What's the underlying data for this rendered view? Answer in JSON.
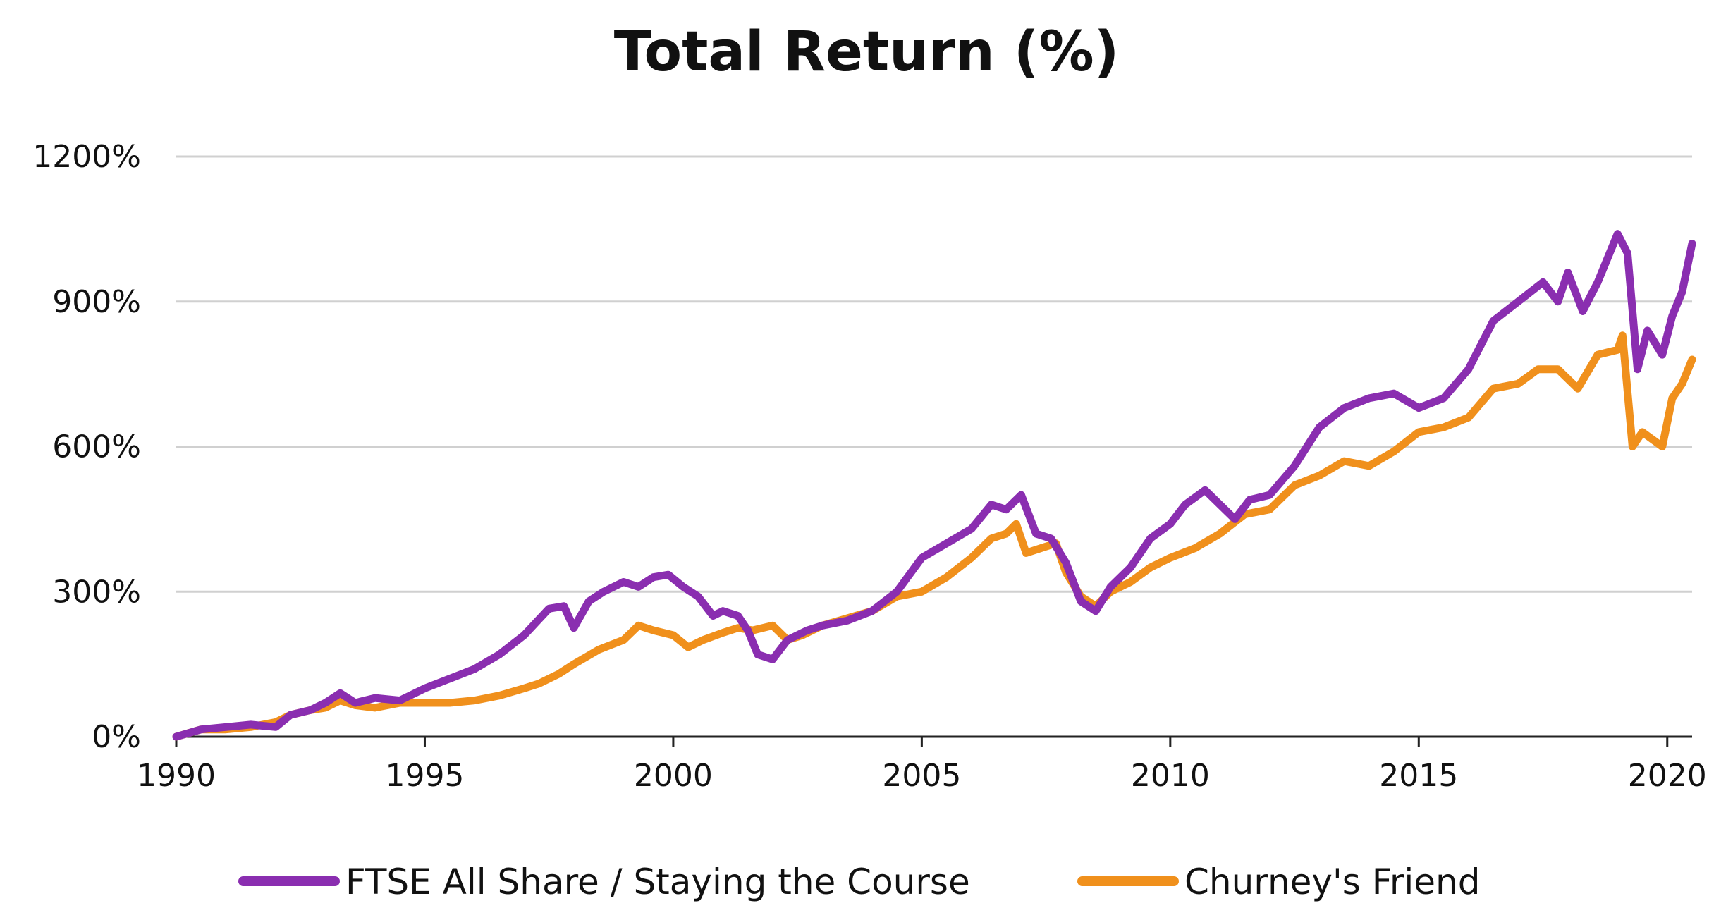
{
  "chart_data": {
    "type": "line",
    "title": "Total Return (%)",
    "xlabel": "",
    "ylabel": "",
    "xlim": [
      1990,
      2020.5
    ],
    "ylim": [
      0,
      1200
    ],
    "x_ticks": [
      "1990",
      "1995",
      "2000",
      "2005",
      "2010",
      "2015",
      "2020"
    ],
    "y_ticks": [
      "0%",
      "300%",
      "600%",
      "900%",
      "1200%"
    ],
    "grid": true,
    "legend_position": "bottom",
    "series": [
      {
        "name": "FTSE All Share / Staying the Course",
        "color": "#8a2eb0",
        "points": [
          [
            1990.0,
            0
          ],
          [
            1990.5,
            15
          ],
          [
            1991.0,
            20
          ],
          [
            1991.5,
            25
          ],
          [
            1992.0,
            20
          ],
          [
            1992.3,
            45
          ],
          [
            1992.7,
            55
          ],
          [
            1993.0,
            70
          ],
          [
            1993.3,
            90
          ],
          [
            1993.6,
            70
          ],
          [
            1994.0,
            80
          ],
          [
            1994.5,
            75
          ],
          [
            1995.0,
            100
          ],
          [
            1995.5,
            120
          ],
          [
            1996.0,
            140
          ],
          [
            1996.5,
            170
          ],
          [
            1997.0,
            210
          ],
          [
            1997.5,
            265
          ],
          [
            1997.8,
            270
          ],
          [
            1998.0,
            225
          ],
          [
            1998.3,
            280
          ],
          [
            1998.6,
            300
          ],
          [
            1999.0,
            320
          ],
          [
            1999.3,
            310
          ],
          [
            1999.6,
            330
          ],
          [
            1999.9,
            335
          ],
          [
            2000.2,
            310
          ],
          [
            2000.5,
            290
          ],
          [
            2000.8,
            250
          ],
          [
            2001.0,
            260
          ],
          [
            2001.3,
            250
          ],
          [
            2001.5,
            220
          ],
          [
            2001.7,
            170
          ],
          [
            2002.0,
            160
          ],
          [
            2002.3,
            200
          ],
          [
            2002.7,
            220
          ],
          [
            2003.0,
            230
          ],
          [
            2003.5,
            240
          ],
          [
            2004.0,
            260
          ],
          [
            2004.5,
            300
          ],
          [
            2005.0,
            370
          ],
          [
            2005.5,
            400
          ],
          [
            2006.0,
            430
          ],
          [
            2006.4,
            480
          ],
          [
            2006.7,
            470
          ],
          [
            2007.0,
            500
          ],
          [
            2007.3,
            420
          ],
          [
            2007.6,
            410
          ],
          [
            2007.9,
            360
          ],
          [
            2008.2,
            280
          ],
          [
            2008.5,
            260
          ],
          [
            2008.8,
            310
          ],
          [
            2009.2,
            350
          ],
          [
            2009.6,
            410
          ],
          [
            2010.0,
            440
          ],
          [
            2010.3,
            480
          ],
          [
            2010.7,
            510
          ],
          [
            2011.0,
            480
          ],
          [
            2011.3,
            450
          ],
          [
            2011.6,
            490
          ],
          [
            2012.0,
            500
          ],
          [
            2012.5,
            560
          ],
          [
            2013.0,
            640
          ],
          [
            2013.5,
            680
          ],
          [
            2014.0,
            700
          ],
          [
            2014.5,
            710
          ],
          [
            2015.0,
            680
          ],
          [
            2015.5,
            700
          ],
          [
            2016.0,
            760
          ],
          [
            2016.5,
            860
          ],
          [
            2017.0,
            900
          ],
          [
            2017.5,
            940
          ],
          [
            2017.8,
            900
          ],
          [
            2018.0,
            960
          ],
          [
            2018.3,
            880
          ],
          [
            2018.6,
            940
          ],
          [
            2019.0,
            1040
          ],
          [
            2019.2,
            1000
          ],
          [
            2019.4,
            760
          ],
          [
            2019.6,
            840
          ],
          [
            2019.9,
            790
          ],
          [
            2020.1,
            870
          ],
          [
            2020.3,
            920
          ],
          [
            2020.5,
            1020
          ]
        ]
      },
      {
        "name": "Churney's Friend",
        "color": "#f0901c",
        "points": [
          [
            1990.0,
            0
          ],
          [
            1990.5,
            15
          ],
          [
            1991.0,
            15
          ],
          [
            1991.5,
            20
          ],
          [
            1992.0,
            30
          ],
          [
            1992.3,
            45
          ],
          [
            1992.7,
            55
          ],
          [
            1993.0,
            60
          ],
          [
            1993.3,
            75
          ],
          [
            1993.6,
            65
          ],
          [
            1994.0,
            60
          ],
          [
            1994.5,
            70
          ],
          [
            1995.0,
            70
          ],
          [
            1995.5,
            70
          ],
          [
            1996.0,
            75
          ],
          [
            1996.5,
            85
          ],
          [
            1997.0,
            100
          ],
          [
            1997.3,
            110
          ],
          [
            1997.7,
            130
          ],
          [
            1998.0,
            150
          ],
          [
            1998.5,
            180
          ],
          [
            1999.0,
            200
          ],
          [
            1999.3,
            230
          ],
          [
            1999.6,
            220
          ],
          [
            2000.0,
            210
          ],
          [
            2000.3,
            185
          ],
          [
            2000.6,
            200
          ],
          [
            2001.0,
            215
          ],
          [
            2001.3,
            225
          ],
          [
            2001.6,
            220
          ],
          [
            2002.0,
            230
          ],
          [
            2002.3,
            200
          ],
          [
            2002.6,
            210
          ],
          [
            2003.0,
            230
          ],
          [
            2003.5,
            245
          ],
          [
            2004.0,
            260
          ],
          [
            2004.5,
            290
          ],
          [
            2005.0,
            300
          ],
          [
            2005.5,
            330
          ],
          [
            2006.0,
            370
          ],
          [
            2006.4,
            410
          ],
          [
            2006.7,
            420
          ],
          [
            2006.9,
            440
          ],
          [
            2007.1,
            380
          ],
          [
            2007.4,
            390
          ],
          [
            2007.7,
            400
          ],
          [
            2007.9,
            340
          ],
          [
            2008.2,
            290
          ],
          [
            2008.5,
            270
          ],
          [
            2008.8,
            300
          ],
          [
            2009.2,
            320
          ],
          [
            2009.6,
            350
          ],
          [
            2010.0,
            370
          ],
          [
            2010.5,
            390
          ],
          [
            2011.0,
            420
          ],
          [
            2011.5,
            460
          ],
          [
            2012.0,
            470
          ],
          [
            2012.5,
            520
          ],
          [
            2013.0,
            540
          ],
          [
            2013.5,
            570
          ],
          [
            2014.0,
            560
          ],
          [
            2014.5,
            590
          ],
          [
            2015.0,
            630
          ],
          [
            2015.5,
            640
          ],
          [
            2016.0,
            660
          ],
          [
            2016.5,
            720
          ],
          [
            2017.0,
            730
          ],
          [
            2017.4,
            760
          ],
          [
            2017.8,
            760
          ],
          [
            2018.2,
            720
          ],
          [
            2018.6,
            790
          ],
          [
            2019.0,
            800
          ],
          [
            2019.1,
            830
          ],
          [
            2019.3,
            600
          ],
          [
            2019.5,
            630
          ],
          [
            2019.9,
            600
          ],
          [
            2020.1,
            700
          ],
          [
            2020.3,
            730
          ],
          [
            2020.5,
            780
          ]
        ]
      }
    ]
  }
}
